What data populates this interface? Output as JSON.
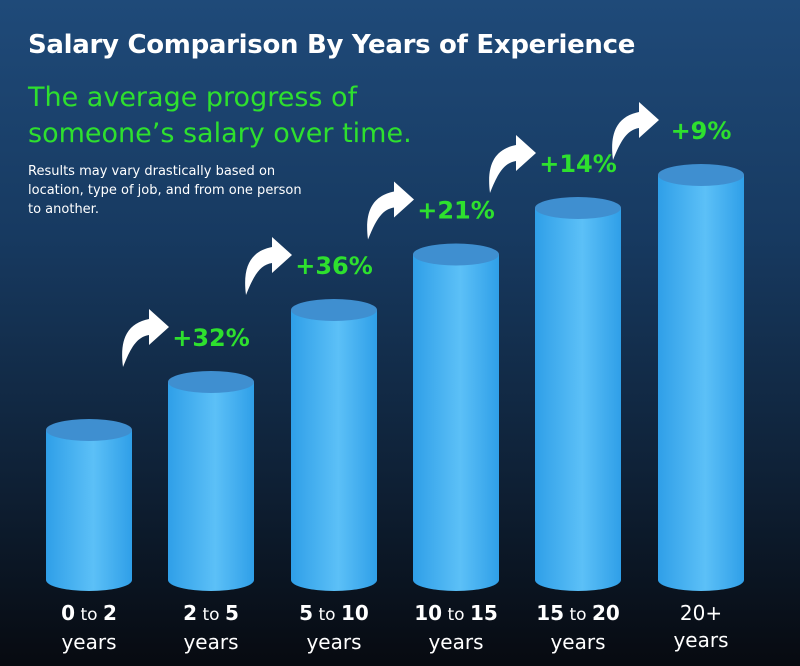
{
  "title": "Salary Comparison By Years of Experience",
  "subtitle": "The average progress of someone’s salary over time.",
  "note": "Results may vary drastically based on location, type of job, and from one person to another.",
  "colors": {
    "bar": "#2f9fe8",
    "bar_light": "#5cc0f7",
    "bar_top": "#3f8fd0",
    "growth_text": "#2ee02e",
    "arrow": "#ffffff"
  },
  "chart_data": {
    "type": "bar",
    "categories": [
      {
        "from": "0",
        "joiner": "to",
        "to": "2",
        "unit": "years"
      },
      {
        "from": "2",
        "joiner": "to",
        "to": "5",
        "unit": "years"
      },
      {
        "from": "5",
        "joiner": "to",
        "to": "10",
        "unit": "years"
      },
      {
        "from": "10",
        "joiner": "to",
        "to": "15",
        "unit": "years"
      },
      {
        "from": "15",
        "joiner": "to",
        "to": "20",
        "unit": "years"
      },
      {
        "from": "20+",
        "joiner": "",
        "to": "",
        "unit": "years"
      }
    ],
    "growth_labels": [
      "",
      "+32%",
      "+36%",
      "+21%",
      "+14%",
      "+9%"
    ],
    "values": [
      1.0,
      1.32,
      1.8,
      2.17,
      2.48,
      2.7
    ],
    "ylim": [
      0,
      3.0
    ]
  }
}
